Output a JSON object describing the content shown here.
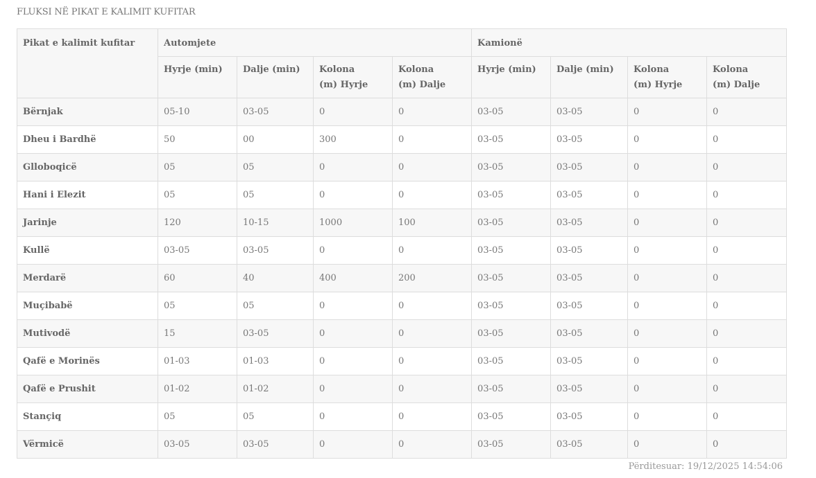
{
  "title": "FLUKSI NË PIKAT E KALIMIT KUFITAR",
  "header": {
    "crossing": "Pikat e kalimit kufitar",
    "group1": "Automjete",
    "group2": "Kamionë",
    "subcols": [
      "Hyrje (min)",
      "Dalje (min)",
      "Kolona (m) Hyrje",
      "Kolona (m) Dalje"
    ]
  },
  "rows": [
    [
      "Bërnjak",
      "05-10",
      "03-05",
      "0",
      "0",
      "03-05",
      "03-05",
      "0",
      "0"
    ],
    [
      "Dheu i Bardhë",
      "50",
      "00",
      "300",
      "0",
      "03-05",
      "03-05",
      "0",
      "0"
    ],
    [
      "Glloboqicë",
      "05",
      "05",
      "0",
      "0",
      "03-05",
      "03-05",
      "0",
      "0"
    ],
    [
      "Hani i Elezit",
      "05",
      "05",
      "0",
      "0",
      "03-05",
      "03-05",
      "0",
      "0"
    ],
    [
      "Jarinje",
      "120",
      "10-15",
      "1000",
      "100",
      "03-05",
      "03-05",
      "0",
      "0"
    ],
    [
      "Kullë",
      "03-05",
      "03-05",
      "0",
      "0",
      "03-05",
      "03-05",
      "0",
      "0"
    ],
    [
      "Merdarë",
      "60",
      "40",
      "400",
      "200",
      "03-05",
      "03-05",
      "0",
      "0"
    ],
    [
      "Muçibabë",
      "05",
      "05",
      "0",
      "0",
      "03-05",
      "03-05",
      "0",
      "0"
    ],
    [
      "Mutivodë",
      "15",
      "03-05",
      "0",
      "0",
      "03-05",
      "03-05",
      "0",
      "0"
    ],
    [
      "Qafë e Morinës",
      "01-03",
      "01-03",
      "0",
      "0",
      "03-05",
      "03-05",
      "0",
      "0"
    ],
    [
      "Qafë e Prushit",
      "01-02",
      "01-02",
      "0",
      "0",
      "03-05",
      "03-05",
      "0",
      "0"
    ],
    [
      "Stançiq",
      "05",
      "05",
      "0",
      "0",
      "03-05",
      "03-05",
      "0",
      "0"
    ],
    [
      "Vërmicë",
      "03-05",
      "03-05",
      "0",
      "0",
      "03-05",
      "03-05",
      "0",
      "0"
    ]
  ],
  "footer": "Përditesuar: 19/12/2025 14:54:06"
}
